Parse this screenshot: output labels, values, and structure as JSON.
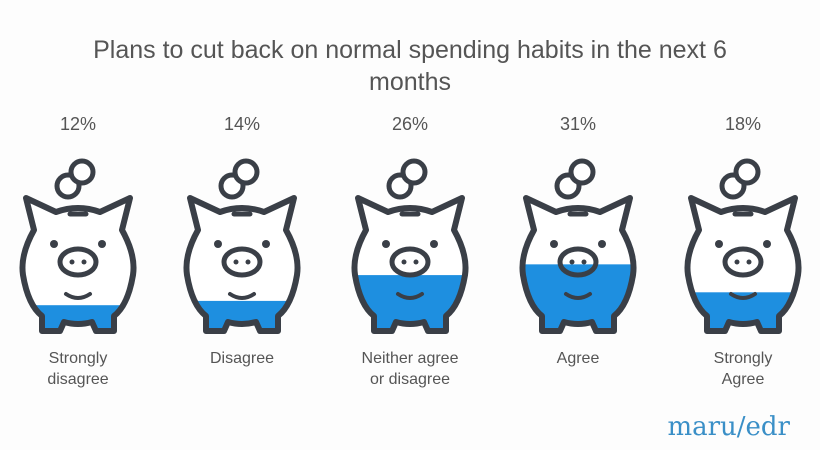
{
  "chart_data": {
    "type": "pictogram",
    "title": "Plans to cut back on normal spending habits in the next 6 months",
    "categories": [
      "Strongly disagree",
      "Disagree",
      "Neither agree or disagree",
      "Agree",
      "Strongly Agree"
    ],
    "values": [
      12,
      14,
      26,
      31,
      18
    ],
    "value_labels": [
      "12%",
      "14%",
      "26%",
      "31%",
      "18%"
    ],
    "color": "#1e8fe0"
  },
  "logo": "maru/edr"
}
